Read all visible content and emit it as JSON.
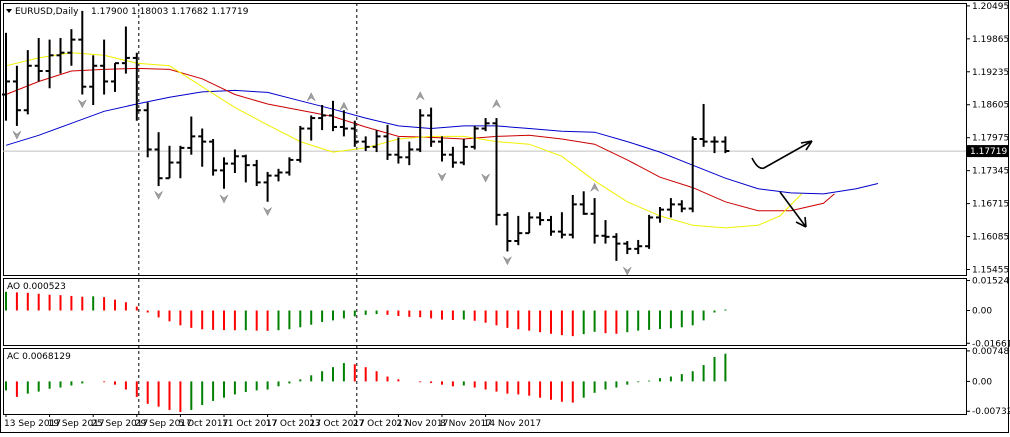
{
  "header": {
    "symbol": "EURUSD,Daily",
    "ohlc": "1.17900 1.18003 1.17682 1.17719"
  },
  "chart_data": [
    {
      "panel": "price",
      "type": "bar",
      "price_axis_labels": [
        "1.20495",
        "1.19865",
        "1.19235",
        "1.18605",
        "1.17975",
        "1.17345",
        "1.16715",
        "1.16085",
        "1.15455"
      ],
      "current_price_label": "1.17719",
      "ylim": [
        1.1535,
        1.2055
      ],
      "x_axis_labels": [
        "13 Sep 2017",
        "19 Sep 2017",
        "25 Sep 2017",
        "29 Sep 2017",
        "5 Oct 2017",
        "11 Oct 2017",
        "17 Oct 2017",
        "23 Oct 2017",
        "27 Oct 2017",
        "2 Nov 2017",
        "8 Nov 2017",
        "14 Nov 2017"
      ],
      "vertical_dividers": [
        "29 Sep 2017",
        "27 Oct 2017"
      ],
      "ohlc": [
        [
          1.188,
          1.1998,
          1.183,
          1.1905
        ],
        [
          1.1905,
          1.1935,
          1.182,
          1.185
        ],
        [
          1.185,
          1.1965,
          1.1842,
          1.1935
        ],
        [
          1.1935,
          1.1988,
          1.1905,
          1.1925
        ],
        [
          1.1925,
          1.1985,
          1.1892,
          1.1955
        ],
        [
          1.1955,
          1.1988,
          1.192,
          1.196
        ],
        [
          1.196,
          1.2005,
          1.1935,
          1.1985
        ],
        [
          1.1985,
          1.204,
          1.188,
          1.1895
        ],
        [
          1.1895,
          1.1955,
          1.186,
          1.1935
        ],
        [
          1.1935,
          1.1985,
          1.188,
          1.1905
        ],
        [
          1.1905,
          1.194,
          1.1885,
          1.194
        ],
        [
          1.194,
          1.201,
          1.192,
          1.195
        ],
        [
          1.195,
          1.196,
          1.183,
          1.185
        ],
        [
          1.185,
          1.1865,
          1.176,
          1.1775
        ],
        [
          1.1775,
          1.1808,
          1.1705,
          1.172
        ],
        [
          1.172,
          1.1782,
          1.172,
          1.175
        ],
        [
          1.175,
          1.1782,
          1.172,
          1.1778
        ],
        [
          1.1778,
          1.1838,
          1.1765,
          1.18
        ],
        [
          1.18,
          1.1815,
          1.1742,
          1.179
        ],
        [
          1.179,
          1.1795,
          1.1725,
          1.1735
        ],
        [
          1.1735,
          1.176,
          1.17,
          1.1748
        ],
        [
          1.1748,
          1.1775,
          1.173,
          1.1762
        ],
        [
          1.1762,
          1.1765,
          1.1712,
          1.1745
        ],
        [
          1.1745,
          1.1755,
          1.1705,
          1.1712
        ],
        [
          1.1712,
          1.1732,
          1.1675,
          1.1725
        ],
        [
          1.1725,
          1.1738,
          1.1714,
          1.1731
        ],
        [
          1.1731,
          1.176,
          1.1725,
          1.1755
        ],
        [
          1.1755,
          1.182,
          1.175,
          1.1815
        ],
        [
          1.1815,
          1.184,
          1.1792,
          1.1835
        ],
        [
          1.1835,
          1.186,
          1.1812,
          1.184
        ],
        [
          1.184,
          1.1868,
          1.181,
          1.1818
        ],
        [
          1.1818,
          1.185,
          1.18,
          1.1815
        ],
        [
          1.1815,
          1.183,
          1.178,
          1.179
        ],
        [
          1.179,
          1.18,
          1.1772,
          1.178
        ],
        [
          1.178,
          1.1812,
          1.177,
          1.18
        ],
        [
          1.18,
          1.1822,
          1.1755,
          1.1765
        ],
        [
          1.1765,
          1.1798,
          1.1748,
          1.176
        ],
        [
          1.176,
          1.179,
          1.1745,
          1.1775
        ],
        [
          1.1775,
          1.1852,
          1.177,
          1.184
        ],
        [
          1.184,
          1.1855,
          1.178,
          1.179
        ],
        [
          1.179,
          1.18,
          1.1752,
          1.1765
        ],
        [
          1.1765,
          1.178,
          1.174,
          1.175
        ],
        [
          1.175,
          1.1795,
          1.1745,
          1.178
        ],
        [
          1.178,
          1.182,
          1.1775,
          1.1815
        ],
        [
          1.1815,
          1.1835,
          1.181,
          1.1825
        ],
        [
          1.1825,
          1.1835,
          1.163,
          1.165
        ],
        [
          1.165,
          1.1655,
          1.158,
          1.16
        ],
        [
          1.16,
          1.1648,
          1.1592,
          1.1615
        ],
        [
          1.1615,
          1.1655,
          1.1615,
          1.1645
        ],
        [
          1.1645,
          1.1655,
          1.163,
          1.164
        ],
        [
          1.164,
          1.1648,
          1.161,
          1.1618
        ],
        [
          1.1618,
          1.1655,
          1.1605,
          1.1612
        ],
        [
          1.1612,
          1.1688,
          1.1605,
          1.167
        ],
        [
          1.167,
          1.1695,
          1.165,
          1.1652
        ],
        [
          1.1652,
          1.1682,
          1.1595,
          1.161
        ],
        [
          1.161,
          1.164,
          1.1595,
          1.1608
        ],
        [
          1.1608,
          1.1615,
          1.1562,
          1.1595
        ],
        [
          1.1595,
          1.16,
          1.1575,
          1.1585
        ],
        [
          1.1585,
          1.1602,
          1.1575,
          1.159
        ],
        [
          1.159,
          1.165,
          1.1585,
          1.1645
        ],
        [
          1.1645,
          1.1665,
          1.1635,
          1.166
        ],
        [
          1.166,
          1.1682,
          1.1645,
          1.167
        ],
        [
          1.167,
          1.1678,
          1.1655,
          1.1662
        ],
        [
          1.1662,
          1.18,
          1.1655,
          1.1795
        ],
        [
          1.1795,
          1.1862,
          1.178,
          1.179
        ],
        [
          1.179,
          1.18,
          1.1768,
          1.179
        ],
        [
          1.179,
          1.18,
          1.1768,
          1.1772
        ]
      ],
      "fractals_up": [
        [
          28,
          1.1868
        ],
        [
          31,
          1.185
        ],
        [
          38,
          1.187
        ],
        [
          45,
          1.1855
        ],
        [
          54,
          1.1695
        ]
      ],
      "fractals_down": [
        [
          1,
          1.181
        ],
        [
          7,
          1.187
        ],
        [
          14,
          1.1695
        ],
        [
          20,
          1.1688
        ],
        [
          24,
          1.1664
        ],
        [
          40,
          1.173
        ],
        [
          44,
          1.1728
        ],
        [
          46,
          1.157
        ],
        [
          57,
          1.155
        ]
      ],
      "alligator": [
        {
          "color": "#0000cc",
          "values": [
            [
              0,
              1.1783
            ],
            [
              3,
              1.1802
            ],
            [
              6,
              1.1825
            ],
            [
              9,
              1.1848
            ],
            [
              12,
              1.1862
            ],
            [
              15,
              1.1875
            ],
            [
              18,
              1.1885
            ],
            [
              21,
              1.1888
            ],
            [
              24,
              1.1884
            ],
            [
              27,
              1.1868
            ],
            [
              30,
              1.1852
            ],
            [
              33,
              1.1835
            ],
            [
              36,
              1.182
            ],
            [
              39,
              1.1815
            ],
            [
              42,
              1.182
            ],
            [
              45,
              1.182
            ],
            [
              48,
              1.1815
            ],
            [
              51,
              1.181
            ],
            [
              54,
              1.1808
            ],
            [
              57,
              1.179
            ],
            [
              60,
              1.177
            ],
            [
              63,
              1.1745
            ],
            [
              66,
              1.172
            ],
            [
              69,
              1.17
            ],
            [
              72,
              1.1692
            ],
            [
              75,
              1.169
            ],
            [
              78,
              1.17
            ],
            [
              80,
              1.171
            ]
          ]
        },
        {
          "color": "#cc0000",
          "values": [
            [
              0,
              1.188
            ],
            [
              3,
              1.1905
            ],
            [
              6,
              1.1925
            ],
            [
              9,
              1.1928
            ],
            [
              12,
              1.193
            ],
            [
              15,
              1.1928
            ],
            [
              18,
              1.191
            ],
            [
              21,
              1.188
            ],
            [
              24,
              1.1862
            ],
            [
              27,
              1.185
            ],
            [
              30,
              1.1838
            ],
            [
              33,
              1.1818
            ],
            [
              36,
              1.18
            ],
            [
              39,
              1.1798
            ],
            [
              42,
              1.1795
            ],
            [
              45,
              1.18
            ],
            [
              48,
              1.1802
            ],
            [
              51,
              1.1795
            ],
            [
              54,
              1.1785
            ],
            [
              57,
              1.1755
            ],
            [
              60,
              1.1722
            ],
            [
              63,
              1.1702
            ],
            [
              66,
              1.1675
            ],
            [
              69,
              1.1658
            ],
            [
              72,
              1.1658
            ],
            [
              75,
              1.1672
            ],
            [
              76,
              1.169
            ]
          ]
        },
        {
          "color": "#f0f000",
          "values": [
            [
              0,
              1.1935
            ],
            [
              3,
              1.195
            ],
            [
              6,
              1.196
            ],
            [
              9,
              1.1955
            ],
            [
              12,
              1.194
            ],
            [
              15,
              1.1935
            ],
            [
              18,
              1.1895
            ],
            [
              21,
              1.1855
            ],
            [
              24,
              1.1822
            ],
            [
              27,
              1.179
            ],
            [
              30,
              1.177
            ],
            [
              33,
              1.1778
            ],
            [
              36,
              1.1795
            ],
            [
              39,
              1.18
            ],
            [
              42,
              1.18
            ],
            [
              45,
              1.179
            ],
            [
              48,
              1.1785
            ],
            [
              51,
              1.1762
            ],
            [
              54,
              1.1715
            ],
            [
              57,
              1.1675
            ],
            [
              60,
              1.1648
            ],
            [
              63,
              1.163
            ],
            [
              66,
              1.1625
            ],
            [
              69,
              1.163
            ],
            [
              71,
              1.1648
            ],
            [
              73,
              1.169
            ]
          ]
        }
      ]
    },
    {
      "panel": "ao",
      "type": "bar",
      "title": "AO 0.000523",
      "axis_labels": [
        "0.015249",
        "0.00",
        "-0.016617"
      ],
      "ylim": [
        -0.0175,
        0.0165
      ],
      "values": [
        0.0095,
        0.0092,
        0.009,
        0.0085,
        0.008,
        0.0078,
        0.0074,
        0.007,
        0.0072,
        0.0068,
        0.0055,
        0.0042,
        0.002,
        -0.001,
        -0.0035,
        -0.0055,
        -0.0075,
        -0.0088,
        -0.0095,
        -0.0098,
        -0.0099,
        -0.01,
        -0.01,
        -0.0102,
        -0.0103,
        -0.01,
        -0.0095,
        -0.0085,
        -0.0072,
        -0.0058,
        -0.005,
        -0.004,
        -0.003,
        -0.0022,
        -0.0018,
        -0.0022,
        -0.0028,
        -0.0032,
        -0.0034,
        -0.004,
        -0.0046,
        -0.0048,
        -0.0046,
        -0.0052,
        -0.0062,
        -0.0075,
        -0.0088,
        -0.0095,
        -0.0102,
        -0.011,
        -0.0118,
        -0.0125,
        -0.013,
        -0.012,
        -0.0108,
        -0.0115,
        -0.0118,
        -0.011,
        -0.0102,
        -0.0098,
        -0.0094,
        -0.009,
        -0.0085,
        -0.0075,
        -0.005,
        -0.001,
        0.000523
      ]
    },
    {
      "panel": "ac",
      "type": "bar",
      "title": "AC 0.0068129",
      "axis_labels": [
        "0.007486",
        "0.00",
        "-0.007324"
      ],
      "ylim": [
        -0.008,
        0.0082
      ],
      "values": [
        -0.0022,
        -0.0038,
        -0.003,
        -0.0025,
        -0.0018,
        -0.0015,
        -0.001,
        -0.0005,
        0.0,
        -0.0002,
        -0.0008,
        -0.002,
        -0.0038,
        -0.0055,
        -0.0062,
        -0.007,
        -0.0075,
        -0.007,
        -0.0058,
        -0.0048,
        -0.004,
        -0.0032,
        -0.0026,
        -0.0022,
        -0.002,
        -0.0012,
        -0.0005,
        0.0005,
        0.0015,
        0.0025,
        0.0035,
        0.0045,
        0.0042,
        0.0035,
        0.0025,
        0.0012,
        0.0005,
        0.0,
        -0.0002,
        -0.0004,
        -0.0008,
        -0.0012,
        -0.001,
        -0.0015,
        -0.002,
        -0.0025,
        -0.003,
        -0.0032,
        -0.0035,
        -0.004,
        -0.0045,
        -0.005,
        -0.0052,
        -0.004,
        -0.0028,
        -0.002,
        -0.0015,
        -0.0008,
        -0.0002,
        0.0002,
        0.0008,
        0.0012,
        0.0018,
        0.0025,
        0.004,
        0.006,
        0.0068
      ]
    }
  ]
}
